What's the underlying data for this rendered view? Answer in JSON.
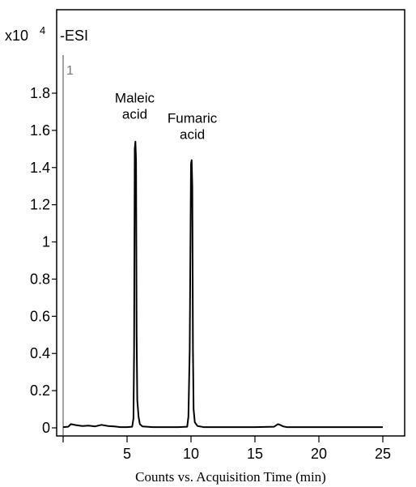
{
  "chart_data": {
    "type": "line",
    "scale_label": "x10",
    "scale_exponent": "4",
    "mode_label": "-ESI",
    "trace_label": "1",
    "xlabel": "Counts vs. Acquisition Time (min)",
    "ylabel": "",
    "xlim": [
      0,
      25
    ],
    "ylim": [
      0,
      2.0
    ],
    "x_ticks": [
      5,
      10,
      15,
      20,
      25
    ],
    "y_ticks": [
      0,
      0.2,
      0.4,
      0.6,
      0.8,
      1,
      1.2,
      1.4,
      1.6,
      1.8
    ],
    "series": [
      {
        "color": "#000000",
        "x": [
          0.0,
          0.4,
          0.6,
          1.0,
          1.5,
          2.0,
          2.5,
          3.0,
          3.5,
          4.0,
          4.5,
          5.0,
          5.4,
          5.5,
          5.55,
          5.6,
          5.65,
          5.7,
          5.75,
          5.8,
          5.9,
          6.0,
          6.2,
          7.0,
          8.0,
          9.0,
          9.7,
          9.8,
          9.9,
          10.0,
          10.05,
          10.1,
          10.15,
          10.2,
          10.3,
          10.5,
          11.0,
          13.0,
          15.0,
          16.5,
          16.8,
          17.0,
          17.2,
          17.5,
          19.0,
          21.0,
          23.0,
          25.0
        ],
        "y": [
          0.004,
          0.006,
          0.02,
          0.015,
          0.01,
          0.012,
          0.008,
          0.016,
          0.01,
          0.008,
          0.004,
          0.004,
          0.006,
          0.05,
          0.42,
          1.5,
          1.54,
          1.44,
          0.5,
          0.15,
          0.06,
          0.02,
          0.008,
          0.004,
          0.004,
          0.004,
          0.006,
          0.06,
          0.42,
          1.42,
          1.44,
          1.3,
          0.42,
          0.1,
          0.03,
          0.01,
          0.004,
          0.004,
          0.004,
          0.006,
          0.02,
          0.015,
          0.008,
          0.004,
          0.004,
          0.004,
          0.004,
          0.004
        ]
      }
    ],
    "annotations": [
      {
        "lines": [
          "Maleic",
          "acid"
        ],
        "x": 5.6,
        "y": 1.75
      },
      {
        "lines": [
          "Fumaric",
          "acid"
        ],
        "x": 10.1,
        "y": 1.64
      }
    ],
    "grid": false,
    "legend": "none"
  }
}
